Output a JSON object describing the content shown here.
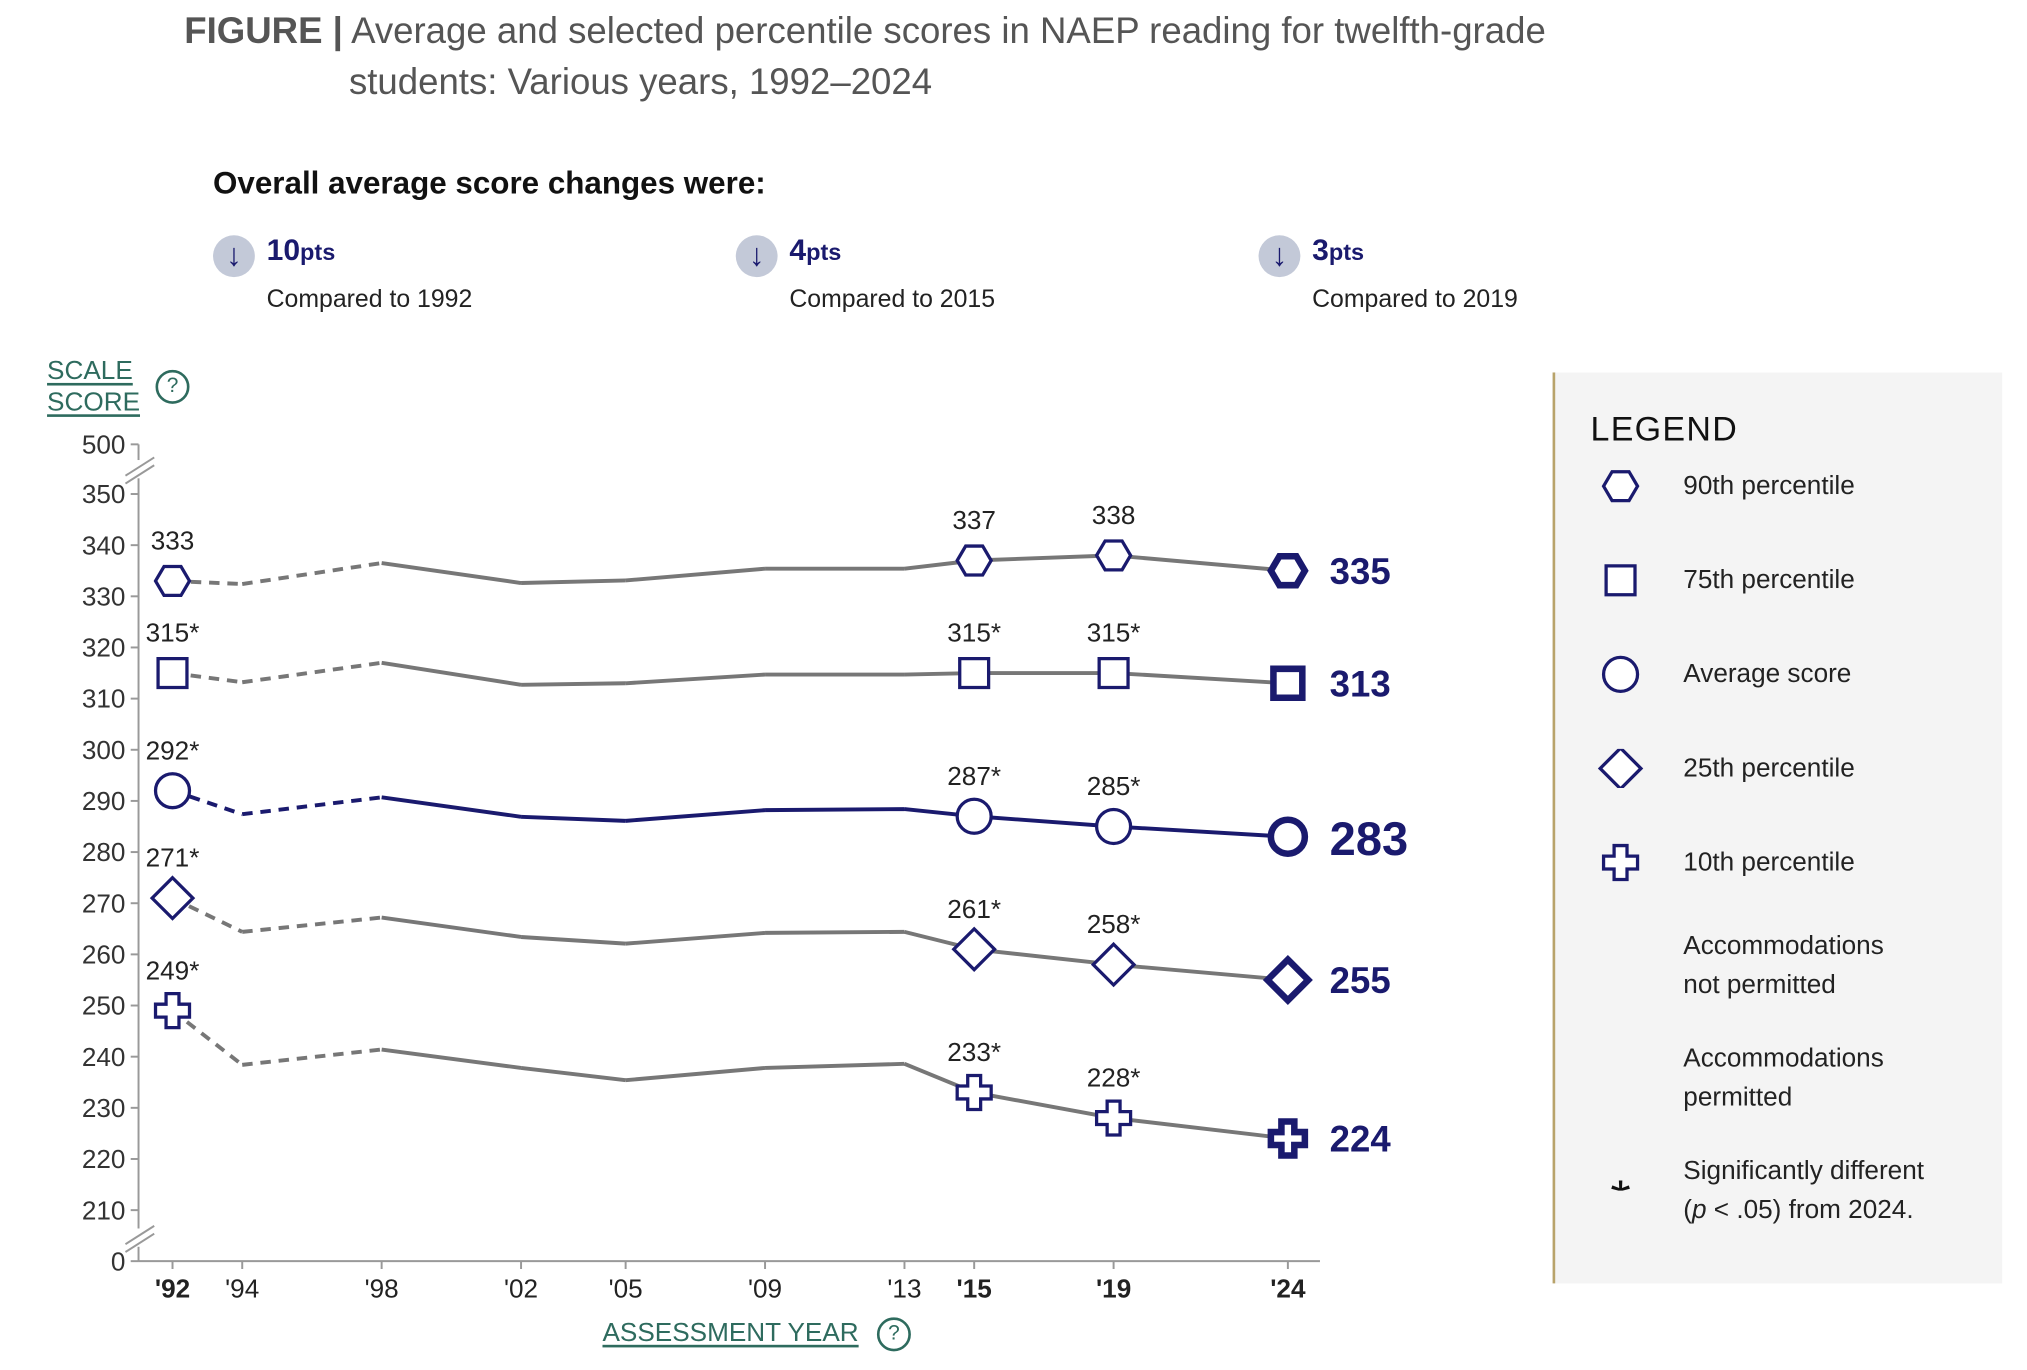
{
  "header": {
    "figure_label": "FIGURE |",
    "title_line1": "Average and selected percentile scores in NAEP reading for twelfth-grade",
    "title_line2": "students: Various years, 1992–2024",
    "changes_heading": "Overall average score changes were:"
  },
  "changes": [
    {
      "value": "10",
      "unit": "pts",
      "direction": "down",
      "label": "Compared to 1992"
    },
    {
      "value": "4",
      "unit": "pts",
      "direction": "down",
      "label": "Compared to 2015"
    },
    {
      "value": "3",
      "unit": "pts",
      "direction": "down",
      "label": "Compared to 2019"
    }
  ],
  "axis_links": {
    "y_line1": "SCALE",
    "y_line2": "SCORE",
    "x": "ASSESSMENT YEAR",
    "help": "?"
  },
  "legend": {
    "title": "LEGEND",
    "items": [
      {
        "icon": "hexagon",
        "label": "90th percentile"
      },
      {
        "icon": "square",
        "label": "75th percentile"
      },
      {
        "icon": "circle",
        "label": "Average score"
      },
      {
        "icon": "diamond",
        "label": "25th percentile"
      },
      {
        "icon": "cross",
        "label": "10th percentile"
      },
      {
        "icon": "dashed-line",
        "label1": "Accommodations",
        "label2": "not permitted"
      },
      {
        "icon": "solid-line",
        "label1": "Accommodations",
        "label2": "permitted"
      },
      {
        "icon": "asterisk",
        "label1": "Significantly different",
        "label2_pre": "(",
        "label2_p": "p",
        "label2_post": " < .05) from 2024."
      }
    ]
  },
  "colors": {
    "navy": "#1a1a6e",
    "gray": "#777777",
    "accent": "#2e6b5e",
    "legend_border": "#b8a36a"
  },
  "chart_data": {
    "type": "line",
    "xlabel": "ASSESSMENT YEAR",
    "ylabel": "SCALE SCORE",
    "x": [
      1992,
      1994,
      1998,
      2002,
      2005,
      2009,
      2013,
      2015,
      2019,
      2024
    ],
    "x_tick_labels": [
      "'92",
      "'94",
      "'98",
      "'02",
      "'05",
      "'09",
      "'13",
      "'15",
      "'19",
      "'24"
    ],
    "x_tick_bold": [
      true,
      false,
      false,
      false,
      false,
      false,
      false,
      true,
      true,
      true
    ],
    "y_ticks": [
      0,
      210,
      220,
      230,
      240,
      250,
      260,
      270,
      280,
      290,
      300,
      310,
      320,
      330,
      340,
      350,
      500
    ],
    "ylim": [
      210,
      350
    ],
    "y_axis_breaks": [
      "0–210",
      "350–500"
    ],
    "dashed_until": 1998,
    "series": [
      {
        "name": "90th percentile",
        "marker": "hexagon",
        "color": "#777777",
        "values": [
          333,
          332.4,
          336.5,
          332.6,
          333.1,
          335.4,
          335.4,
          337,
          338,
          335
        ],
        "labels": {
          "1992": "333",
          "2015": "337",
          "2019": "338",
          "2024": "335"
        }
      },
      {
        "name": "75th percentile",
        "marker": "square",
        "color": "#777777",
        "values": [
          315,
          313.2,
          317,
          312.7,
          313,
          314.7,
          314.7,
          315,
          315,
          313
        ],
        "labels": {
          "1992": "315*",
          "2015": "315*",
          "2019": "315*",
          "2024": "313"
        }
      },
      {
        "name": "Average score",
        "marker": "circle",
        "color": "#1a1a6e",
        "values": [
          292,
          287.4,
          290.7,
          286.9,
          286.1,
          288.2,
          288.4,
          287,
          285,
          283
        ],
        "labels": {
          "1992": "292*",
          "2015": "287*",
          "2019": "285*",
          "2024": "283"
        }
      },
      {
        "name": "25th percentile",
        "marker": "diamond",
        "color": "#777777",
        "values": [
          271,
          264.4,
          267.2,
          263.4,
          262.1,
          264.2,
          264.4,
          261,
          258,
          255
        ],
        "labels": {
          "1992": "271*",
          "2015": "261*",
          "2019": "258*",
          "2024": "255"
        }
      },
      {
        "name": "10th percentile",
        "marker": "cross",
        "color": "#777777",
        "values": [
          249,
          238.4,
          241.4,
          237.8,
          235.4,
          237.8,
          238.6,
          233,
          228,
          224
        ],
        "labels": {
          "1992": "249*",
          "2015": "233*",
          "2019": "228*",
          "2024": "224"
        }
      }
    ]
  }
}
